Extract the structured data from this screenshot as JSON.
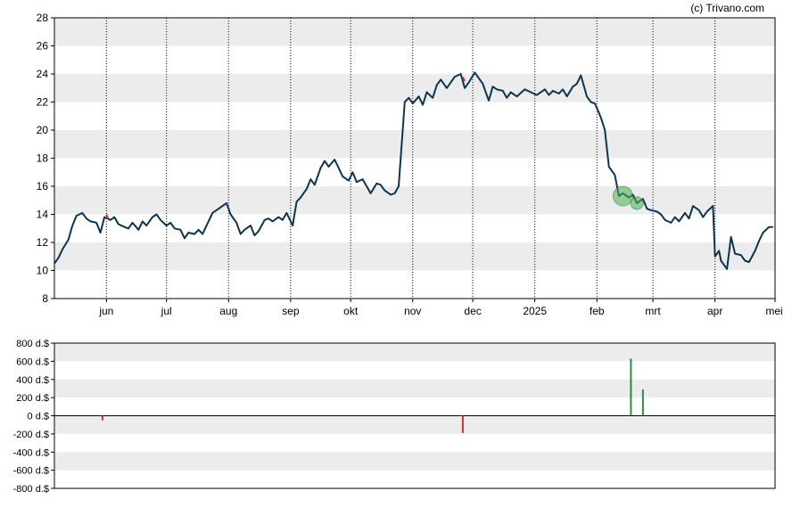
{
  "credit": "(c) Trivano.com",
  "colors": {
    "band": "#ececec",
    "line": "#0d3550",
    "buy": "#2e8b47",
    "sell": "#d32f2f",
    "circle": "#4caf50"
  },
  "chart_data": [
    {
      "type": "line",
      "xlabel": "",
      "ylabel": "",
      "ylim": [
        8,
        28
      ],
      "yticks": [
        8,
        10,
        12,
        14,
        16,
        18,
        20,
        22,
        24,
        26,
        28
      ],
      "grid": true,
      "x_tick_labels": [
        {
          "label": "jun",
          "date": "2024-06-01"
        },
        {
          "label": "jul",
          "date": "2024-07-01"
        },
        {
          "label": "aug",
          "date": "2024-08-01"
        },
        {
          "label": "sep",
          "date": "2024-09-01"
        },
        {
          "label": "okt",
          "date": "2024-10-01"
        },
        {
          "label": "nov",
          "date": "2024-11-01"
        },
        {
          "label": "dec",
          "date": "2024-12-01"
        },
        {
          "label": "2025",
          "date": "2025-01-01"
        },
        {
          "label": "feb",
          "date": "2025-02-01"
        },
        {
          "label": "mrt",
          "date": "2025-03-01"
        },
        {
          "label": "apr",
          "date": "2025-04-01"
        },
        {
          "label": "mei",
          "date": "2025-05-01"
        }
      ],
      "xlim": [
        "2024-05-06",
        "2025-05-01"
      ],
      "series": [
        {
          "values": [
            [
              "2024-05-06",
              10.5
            ],
            [
              "2024-05-08",
              10.9
            ],
            [
              "2024-05-10",
              11.5
            ],
            [
              "2024-05-13",
              12.2
            ],
            [
              "2024-05-15",
              13.2
            ],
            [
              "2024-05-17",
              13.9
            ],
            [
              "2024-05-20",
              14.1
            ],
            [
              "2024-05-22",
              13.7
            ],
            [
              "2024-05-24",
              13.5
            ],
            [
              "2024-05-27",
              13.4
            ],
            [
              "2024-05-29",
              12.7
            ],
            [
              "2024-05-31",
              13.8
            ],
            [
              "2024-06-03",
              13.6
            ],
            [
              "2024-06-05",
              13.8
            ],
            [
              "2024-06-07",
              13.3
            ],
            [
              "2024-06-10",
              13.1
            ],
            [
              "2024-06-12",
              13.0
            ],
            [
              "2024-06-14",
              13.4
            ],
            [
              "2024-06-17",
              12.9
            ],
            [
              "2024-06-19",
              13.5
            ],
            [
              "2024-06-21",
              13.2
            ],
            [
              "2024-06-24",
              13.8
            ],
            [
              "2024-06-26",
              14.0
            ],
            [
              "2024-06-28",
              13.6
            ],
            [
              "2024-07-01",
              13.2
            ],
            [
              "2024-07-03",
              13.4
            ],
            [
              "2024-07-05",
              13.0
            ],
            [
              "2024-07-08",
              12.9
            ],
            [
              "2024-07-10",
              12.3
            ],
            [
              "2024-07-12",
              12.7
            ],
            [
              "2024-07-15",
              12.6
            ],
            [
              "2024-07-17",
              12.9
            ],
            [
              "2024-07-19",
              12.6
            ],
            [
              "2024-07-22",
              13.5
            ],
            [
              "2024-07-24",
              14.1
            ],
            [
              "2024-07-26",
              14.3
            ],
            [
              "2024-07-29",
              14.6
            ],
            [
              "2024-07-31",
              14.8
            ],
            [
              "2024-08-02",
              14.0
            ],
            [
              "2024-08-05",
              13.4
            ],
            [
              "2024-08-07",
              12.6
            ],
            [
              "2024-08-09",
              12.9
            ],
            [
              "2024-08-12",
              13.2
            ],
            [
              "2024-08-14",
              12.5
            ],
            [
              "2024-08-16",
              12.8
            ],
            [
              "2024-08-19",
              13.6
            ],
            [
              "2024-08-21",
              13.7
            ],
            [
              "2024-08-23",
              13.5
            ],
            [
              "2024-08-26",
              13.8
            ],
            [
              "2024-08-28",
              13.6
            ],
            [
              "2024-08-30",
              14.1
            ],
            [
              "2024-09-02",
              13.2
            ],
            [
              "2024-09-04",
              14.9
            ],
            [
              "2024-09-06",
              15.2
            ],
            [
              "2024-09-09",
              15.8
            ],
            [
              "2024-09-11",
              16.5
            ],
            [
              "2024-09-13",
              16.1
            ],
            [
              "2024-09-16",
              17.3
            ],
            [
              "2024-09-18",
              17.8
            ],
            [
              "2024-09-20",
              17.4
            ],
            [
              "2024-09-23",
              17.9
            ],
            [
              "2024-09-25",
              17.3
            ],
            [
              "2024-09-27",
              16.7
            ],
            [
              "2024-09-30",
              16.4
            ],
            [
              "2024-10-02",
              17.0
            ],
            [
              "2024-10-04",
              16.3
            ],
            [
              "2024-10-07",
              16.5
            ],
            [
              "2024-10-09",
              16.0
            ],
            [
              "2024-10-11",
              15.5
            ],
            [
              "2024-10-14",
              16.2
            ],
            [
              "2024-10-16",
              16.1
            ],
            [
              "2024-10-18",
              15.7
            ],
            [
              "2024-10-21",
              15.4
            ],
            [
              "2024-10-23",
              15.5
            ],
            [
              "2024-10-25",
              16.0
            ],
            [
              "2024-10-28",
              22.0
            ],
            [
              "2024-10-30",
              22.3
            ],
            [
              "2024-11-01",
              21.9
            ],
            [
              "2024-11-04",
              22.4
            ],
            [
              "2024-11-06",
              21.8
            ],
            [
              "2024-11-08",
              22.7
            ],
            [
              "2024-11-11",
              22.3
            ],
            [
              "2024-11-13",
              23.2
            ],
            [
              "2024-11-15",
              23.6
            ],
            [
              "2024-11-18",
              23.0
            ],
            [
              "2024-11-20",
              23.4
            ],
            [
              "2024-11-22",
              23.8
            ],
            [
              "2024-11-25",
              24.0
            ],
            [
              "2024-11-27",
              23.0
            ],
            [
              "2024-11-29",
              23.4
            ],
            [
              "2024-12-02",
              24.1
            ],
            [
              "2024-12-04",
              23.7
            ],
            [
              "2024-12-06",
              23.3
            ],
            [
              "2024-12-09",
              22.1
            ],
            [
              "2024-12-11",
              23.1
            ],
            [
              "2024-12-13",
              22.9
            ],
            [
              "2024-12-16",
              22.8
            ],
            [
              "2024-12-18",
              22.3
            ],
            [
              "2024-12-20",
              22.7
            ],
            [
              "2024-12-23",
              22.4
            ],
            [
              "2024-12-27",
              22.9
            ],
            [
              "2024-12-30",
              22.7
            ],
            [
              "2025-01-02",
              22.5
            ],
            [
              "2025-01-06",
              22.9
            ],
            [
              "2025-01-08",
              22.5
            ],
            [
              "2025-01-10",
              22.8
            ],
            [
              "2025-01-13",
              22.6
            ],
            [
              "2025-01-15",
              22.9
            ],
            [
              "2025-01-17",
              22.4
            ],
            [
              "2025-01-20",
              23.1
            ],
            [
              "2025-01-22",
              23.3
            ],
            [
              "2025-01-24",
              23.9
            ],
            [
              "2025-01-27",
              22.4
            ],
            [
              "2025-01-29",
              22.0
            ],
            [
              "2025-01-31",
              21.9
            ],
            [
              "2025-02-03",
              20.9
            ],
            [
              "2025-02-05",
              20.0
            ],
            [
              "2025-02-07",
              17.4
            ],
            [
              "2025-02-10",
              16.8
            ],
            [
              "2025-02-12",
              15.3
            ],
            [
              "2025-02-14",
              15.5
            ],
            [
              "2025-02-17",
              15.2
            ],
            [
              "2025-02-19",
              15.4
            ],
            [
              "2025-02-21",
              14.8
            ],
            [
              "2025-02-24",
              15.1
            ],
            [
              "2025-02-26",
              14.4
            ],
            [
              "2025-02-28",
              14.3
            ],
            [
              "2025-03-03",
              14.2
            ],
            [
              "2025-03-05",
              14.0
            ],
            [
              "2025-03-07",
              13.6
            ],
            [
              "2025-03-10",
              13.4
            ],
            [
              "2025-03-12",
              13.8
            ],
            [
              "2025-03-14",
              13.5
            ],
            [
              "2025-03-17",
              14.1
            ],
            [
              "2025-03-19",
              13.7
            ],
            [
              "2025-03-21",
              14.6
            ],
            [
              "2025-03-24",
              14.3
            ],
            [
              "2025-03-26",
              13.8
            ],
            [
              "2025-03-28",
              14.2
            ],
            [
              "2025-03-31",
              14.6
            ],
            [
              "2025-04-01",
              11.0
            ],
            [
              "2025-04-03",
              11.4
            ],
            [
              "2025-04-04",
              10.7
            ],
            [
              "2025-04-07",
              10.1
            ],
            [
              "2025-04-09",
              12.4
            ],
            [
              "2025-04-11",
              11.2
            ],
            [
              "2025-04-14",
              11.1
            ],
            [
              "2025-04-16",
              10.7
            ],
            [
              "2025-04-18",
              10.6
            ],
            [
              "2025-04-21",
              11.4
            ],
            [
              "2025-04-23",
              12.1
            ],
            [
              "2025-04-25",
              12.7
            ],
            [
              "2025-04-28",
              13.1
            ],
            [
              "2025-04-30",
              13.1
            ]
          ]
        }
      ],
      "markers": [
        {
          "kind": "sell-tick",
          "date": "2024-06-01",
          "value": 13.8
        },
        {
          "kind": "sell-tick",
          "date": "2024-11-26",
          "value": 23.6
        },
        {
          "kind": "buy-circle",
          "date": "2025-02-14",
          "value": 15.3
        },
        {
          "kind": "buy-circle",
          "date": "2025-02-21",
          "value": 14.8
        }
      ]
    },
    {
      "type": "bar",
      "xlabel": "",
      "ylabel": "",
      "ylim": [
        -800,
        800
      ],
      "yticks": [
        {
          "value": 800,
          "label": "800 d.$"
        },
        {
          "value": 600,
          "label": "600 d.$"
        },
        {
          "value": 400,
          "label": "400 d.$"
        },
        {
          "value": 200,
          "label": "200 d.$"
        },
        {
          "value": 0,
          "label": "0 d.$"
        },
        {
          "value": -200,
          "label": "-200 d.$"
        },
        {
          "value": -400,
          "label": "-400 d.$"
        },
        {
          "value": -600,
          "label": "-600 d.$"
        },
        {
          "value": -800,
          "label": "-800 d.$"
        }
      ],
      "grid": true,
      "xlim": [
        "2024-05-06",
        "2025-05-01"
      ],
      "values": [
        {
          "date": "2024-05-30",
          "value": -50,
          "kind": "sell"
        },
        {
          "date": "2024-11-26",
          "value": -190,
          "kind": "sell"
        },
        {
          "date": "2025-02-18",
          "value": 630,
          "kind": "buy"
        },
        {
          "date": "2025-02-24",
          "value": 290,
          "kind": "buy"
        }
      ]
    }
  ]
}
